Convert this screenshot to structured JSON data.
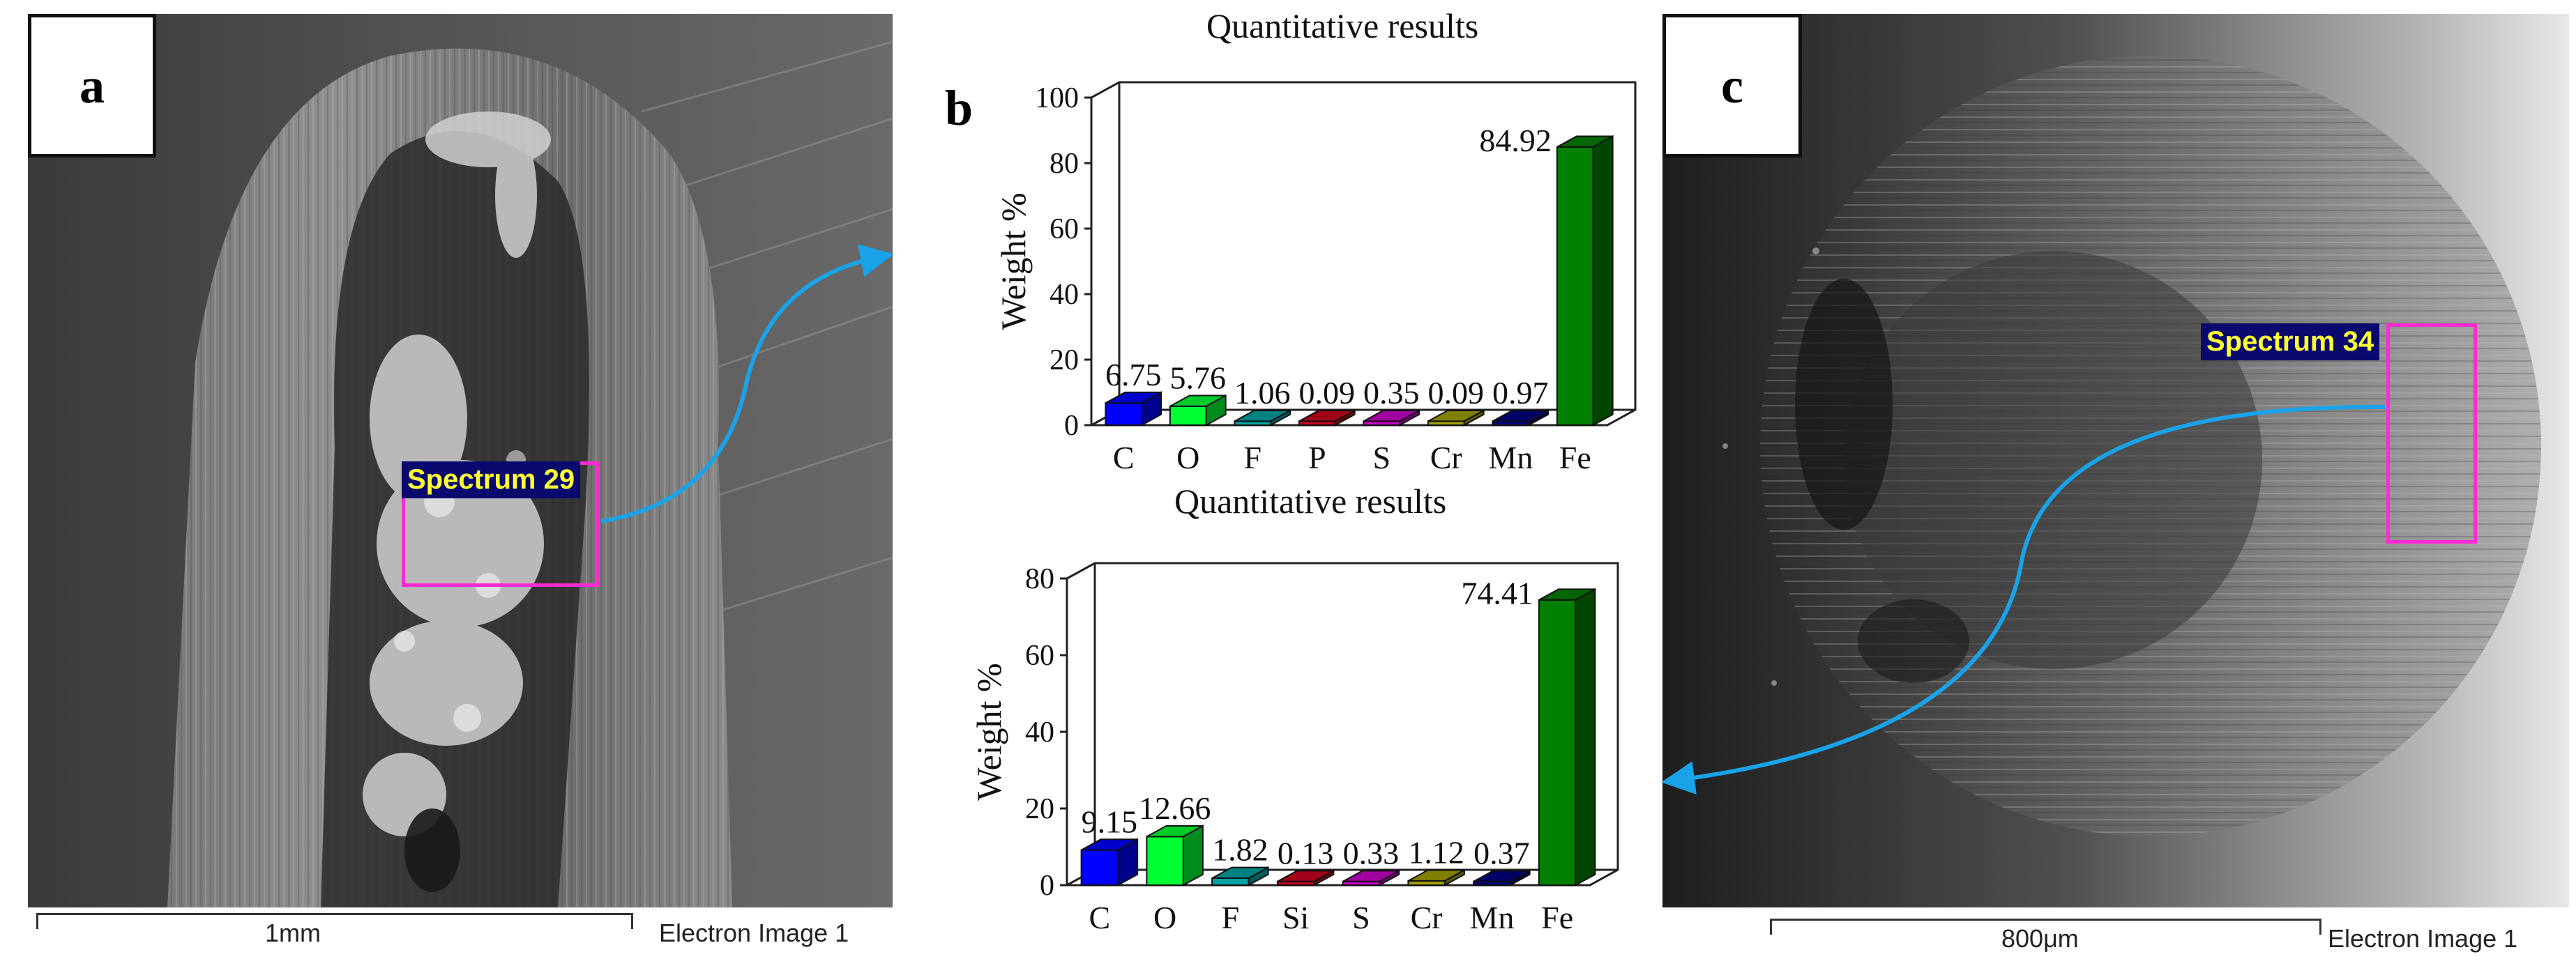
{
  "panel_a": {
    "label": "a",
    "spectrum_label": "Spectrum 29",
    "scale_text": "1mm",
    "caption": "Electron Image 1"
  },
  "panel_b": {
    "label": "b"
  },
  "panel_c": {
    "label": "c",
    "spectrum_label": "Spectrum 34",
    "scale_text": "800μm",
    "caption": "Electron Image 1"
  },
  "colors": {
    "arrow": "#1aa3e8",
    "spectrum_box": "#ff2ad4"
  },
  "chart_data": [
    {
      "type": "bar",
      "title": "Quantitative results",
      "ylabel": "Weight %",
      "xlabel": "",
      "ylim": [
        0,
        100
      ],
      "yticks": [
        0,
        20,
        40,
        60,
        80,
        100
      ],
      "categories": [
        "C",
        "O",
        "F",
        "P",
        "S",
        "Cr",
        "Mn",
        "Fe"
      ],
      "values": [
        6.75,
        5.76,
        1.06,
        0.09,
        0.35,
        0.09,
        0.97,
        84.92
      ],
      "value_labels": [
        "6.75",
        "5.76",
        "1.06",
        "0.09",
        "0.35",
        "0.09",
        "0.97",
        "84.92"
      ],
      "bar_colors": [
        "#0000ff",
        "#00ff33",
        "#00a3a3",
        "#c8001e",
        "#c800c8",
        "#a0a000",
        "#000080",
        "#008000"
      ]
    },
    {
      "type": "bar",
      "title": "Quantitative results",
      "ylabel": "Weight %",
      "xlabel": "",
      "ylim": [
        0,
        80
      ],
      "yticks": [
        0,
        20,
        40,
        60,
        80
      ],
      "categories": [
        "C",
        "O",
        "F",
        "Si",
        "S",
        "Cr",
        "Mn",
        "Fe"
      ],
      "values": [
        9.15,
        12.66,
        1.82,
        0.13,
        0.33,
        1.12,
        0.37,
        74.41
      ],
      "value_labels": [
        "9.15",
        "12.66",
        "1.82",
        "0.13",
        "0.33",
        "1.12",
        "0.37",
        "74.41"
      ],
      "bar_colors": [
        "#0000ff",
        "#00ff33",
        "#00a3a3",
        "#c8001e",
        "#c800c8",
        "#a0a000",
        "#000080",
        "#008000"
      ]
    }
  ]
}
